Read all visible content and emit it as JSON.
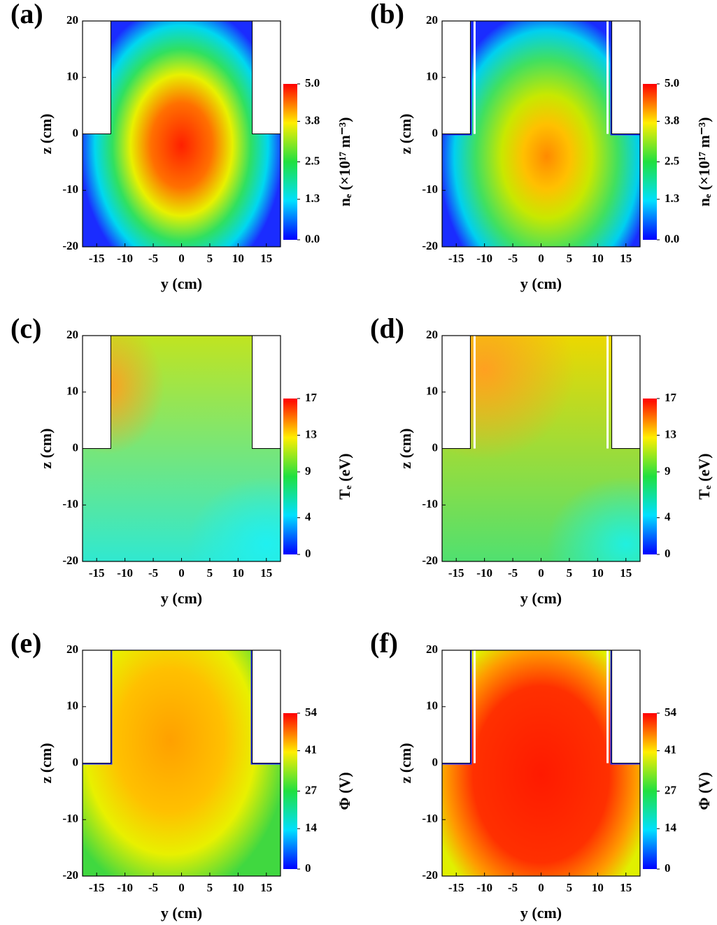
{
  "chart_data": [
    {
      "type": "heatmap",
      "panel_label": "(a)",
      "xlabel": "y (cm)",
      "ylabel": "z (cm)",
      "xlim": [
        -17.5,
        17.5
      ],
      "ylim": [
        -20,
        20
      ],
      "xticks": [
        -15,
        -10,
        -5,
        0,
        5,
        10,
        15
      ],
      "yticks": [
        -20,
        -10,
        0,
        10,
        20
      ],
      "colormap": "jet",
      "colorbar_label": "nₑ (×10¹⁷ m⁻³)",
      "clim": [
        0,
        5
      ],
      "cticks": [
        {
          "value": 0,
          "label": "0.0"
        },
        1.3,
        2.5,
        3.8,
        {
          "value": 5,
          "label": "5.0"
        }
      ]
    },
    {
      "type": "heatmap",
      "panel_label": "(b)",
      "xlabel": "y (cm)",
      "ylabel": "z (cm)",
      "xlim": [
        -17.5,
        17.5
      ],
      "ylim": [
        -20,
        20
      ],
      "xticks": [
        -15,
        -10,
        -5,
        0,
        5,
        10,
        15
      ],
      "yticks": [
        -20,
        -10,
        0,
        10,
        20
      ],
      "colormap": "jet",
      "colorbar_label": "nₑ (×10¹⁷ m⁻³)",
      "clim": [
        0,
        5
      ],
      "cticks": [
        {
          "value": 0,
          "label": "0.0"
        },
        1.3,
        2.5,
        3.8,
        {
          "value": 5,
          "label": "5.0"
        }
      ]
    },
    {
      "type": "heatmap",
      "panel_label": "(c)",
      "xlabel": "y (cm)",
      "ylabel": "z (cm)",
      "xlim": [
        -17.5,
        17.5
      ],
      "ylim": [
        -20,
        20
      ],
      "xticks": [
        -15,
        -10,
        -5,
        0,
        5,
        10,
        15
      ],
      "yticks": [
        -20,
        -10,
        0,
        10,
        20
      ],
      "colormap": "jet",
      "colorbar_label": "Tₑ (eV)",
      "clim": [
        0,
        17
      ],
      "cticks": [
        0,
        4,
        9,
        13,
        17
      ]
    },
    {
      "type": "heatmap",
      "panel_label": "(d)",
      "xlabel": "y (cm)",
      "ylabel": "z (cm)",
      "xlim": [
        -17.5,
        17.5
      ],
      "ylim": [
        -20,
        20
      ],
      "xticks": [
        -15,
        -10,
        -5,
        0,
        5,
        10,
        15
      ],
      "yticks": [
        -20,
        -10,
        0,
        10,
        20
      ],
      "colormap": "jet",
      "colorbar_label": "Tₑ (eV)",
      "clim": [
        0,
        17
      ],
      "cticks": [
        0,
        4,
        9,
        13,
        17
      ]
    },
    {
      "type": "heatmap",
      "panel_label": "(e)",
      "xlabel": "y (cm)",
      "ylabel": "z (cm)",
      "xlim": [
        -17.5,
        17.5
      ],
      "ylim": [
        -20,
        20
      ],
      "xticks": [
        -15,
        -10,
        -5,
        0,
        5,
        10,
        15
      ],
      "yticks": [
        -20,
        -10,
        0,
        10,
        20
      ],
      "colormap": "jet",
      "colorbar_label": "Φ (V)",
      "clim": [
        0,
        54
      ],
      "cticks": [
        0,
        14,
        27,
        41,
        54
      ]
    },
    {
      "type": "heatmap",
      "panel_label": "(f)",
      "xlabel": "y (cm)",
      "ylabel": "z (cm)",
      "xlim": [
        -17.5,
        17.5
      ],
      "ylim": [
        -20,
        20
      ],
      "xticks": [
        -15,
        -10,
        -5,
        0,
        5,
        10,
        15
      ],
      "yticks": [
        -20,
        -10,
        0,
        10,
        20
      ],
      "colormap": "jet",
      "colorbar_label": "Φ (V)",
      "clim": [
        0,
        54
      ],
      "cticks": [
        0,
        14,
        27,
        41,
        54
      ]
    }
  ]
}
